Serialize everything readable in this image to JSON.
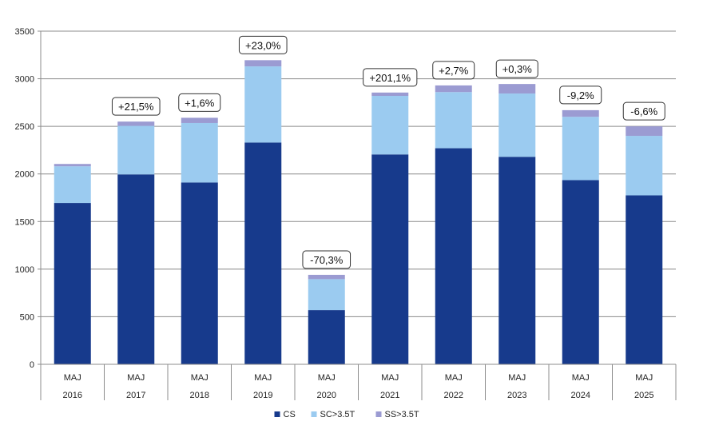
{
  "chart_data": {
    "type": "bar",
    "stacked": true,
    "categories": [
      "MAJ",
      "MAJ",
      "MAJ",
      "MAJ",
      "MAJ",
      "MAJ",
      "MAJ",
      "MAJ",
      "MAJ",
      "MAJ"
    ],
    "years": [
      "2016",
      "2017",
      "2018",
      "2019",
      "2020",
      "2021",
      "2022",
      "2023",
      "2024",
      "2025"
    ],
    "series": [
      {
        "name": "CS",
        "color": "#173a8c",
        "values": [
          1695,
          1995,
          1910,
          2330,
          570,
          2205,
          2270,
          2180,
          1935,
          1775
        ]
      },
      {
        "name": "SC>3.5T",
        "color": "#9bcbf0",
        "values": [
          385,
          510,
          625,
          800,
          325,
          615,
          590,
          665,
          665,
          625
        ]
      },
      {
        "name": "SS>3.5T",
        "color": "#9b9bd2",
        "values": [
          25,
          45,
          55,
          65,
          45,
          35,
          70,
          100,
          70,
          100
        ]
      }
    ],
    "annotations": [
      "",
      "+21,5%",
      "+1,6%",
      "+23,0%",
      "-70,3%",
      "+201,1%",
      "+2,7%",
      "+0,3%",
      "-9,2%",
      "-6,6%"
    ],
    "ylim": [
      0,
      3500
    ],
    "yticks": [
      "0",
      "500",
      "1000",
      "1500",
      "2000",
      "2500",
      "3000",
      "3500"
    ],
    "grid": true,
    "legend_position": "bottom-center"
  }
}
